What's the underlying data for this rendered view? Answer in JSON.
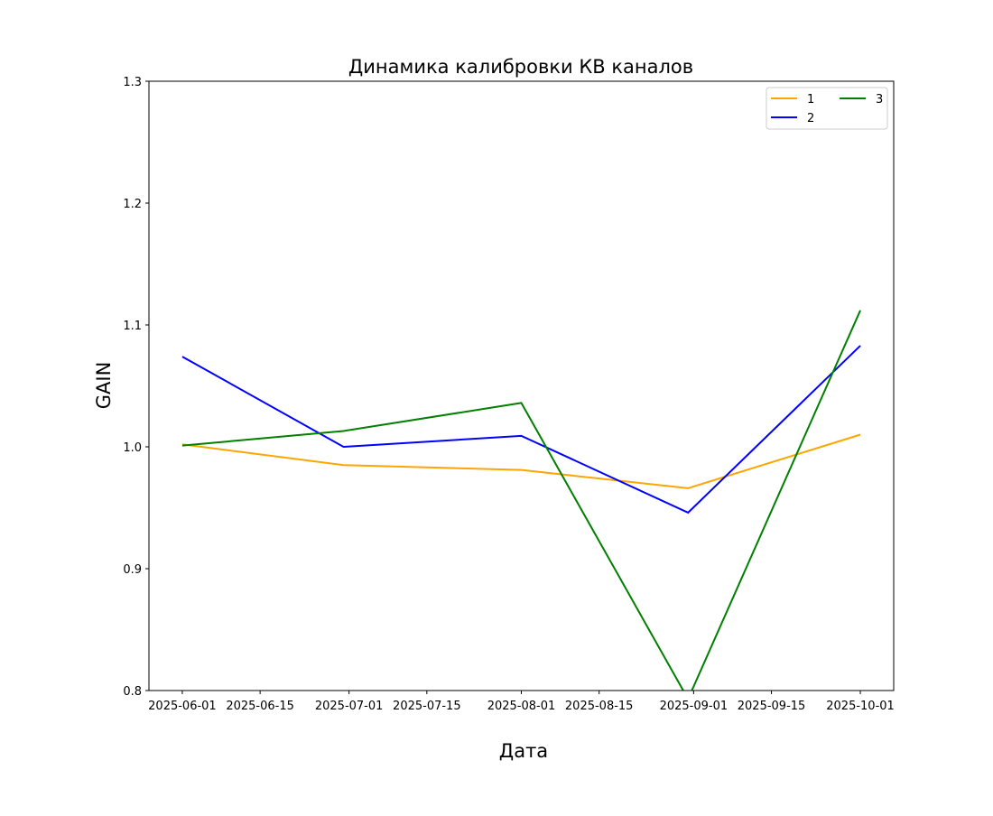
{
  "chart_data": {
    "type": "line",
    "title": "Динамика калибровки КВ каналов",
    "xlabel": "Дата",
    "ylabel": "GAIN",
    "ylim": [
      0.8,
      1.3
    ],
    "xlim": [
      "2025-05-26",
      "2025-10-07"
    ],
    "yticks": [
      "0.8",
      "0.9",
      "1.0",
      "1.1",
      "1.2",
      "1.3"
    ],
    "xticks": [
      "2025-06-01",
      "2025-06-15",
      "2025-07-01",
      "2025-07-15",
      "2025-08-01",
      "2025-08-15",
      "2025-09-01",
      "2025-09-15",
      "2025-10-01"
    ],
    "x": [
      "2025-06-01",
      "2025-06-30",
      "2025-08-01",
      "2025-08-31",
      "2025-10-01"
    ],
    "series": [
      {
        "name": "1",
        "color": "#ffa500",
        "values": [
          1.002,
          0.985,
          0.981,
          0.966,
          1.01
        ]
      },
      {
        "name": "2",
        "color": "#0000ff",
        "values": [
          1.074,
          1.0,
          1.009,
          0.946,
          1.083
        ]
      },
      {
        "name": "3",
        "color": "#008000",
        "values": [
          1.001,
          1.013,
          1.036,
          0.793,
          1.112
        ]
      }
    ],
    "grid": false,
    "legend": {
      "placement": "top-right",
      "columns": 2
    }
  }
}
